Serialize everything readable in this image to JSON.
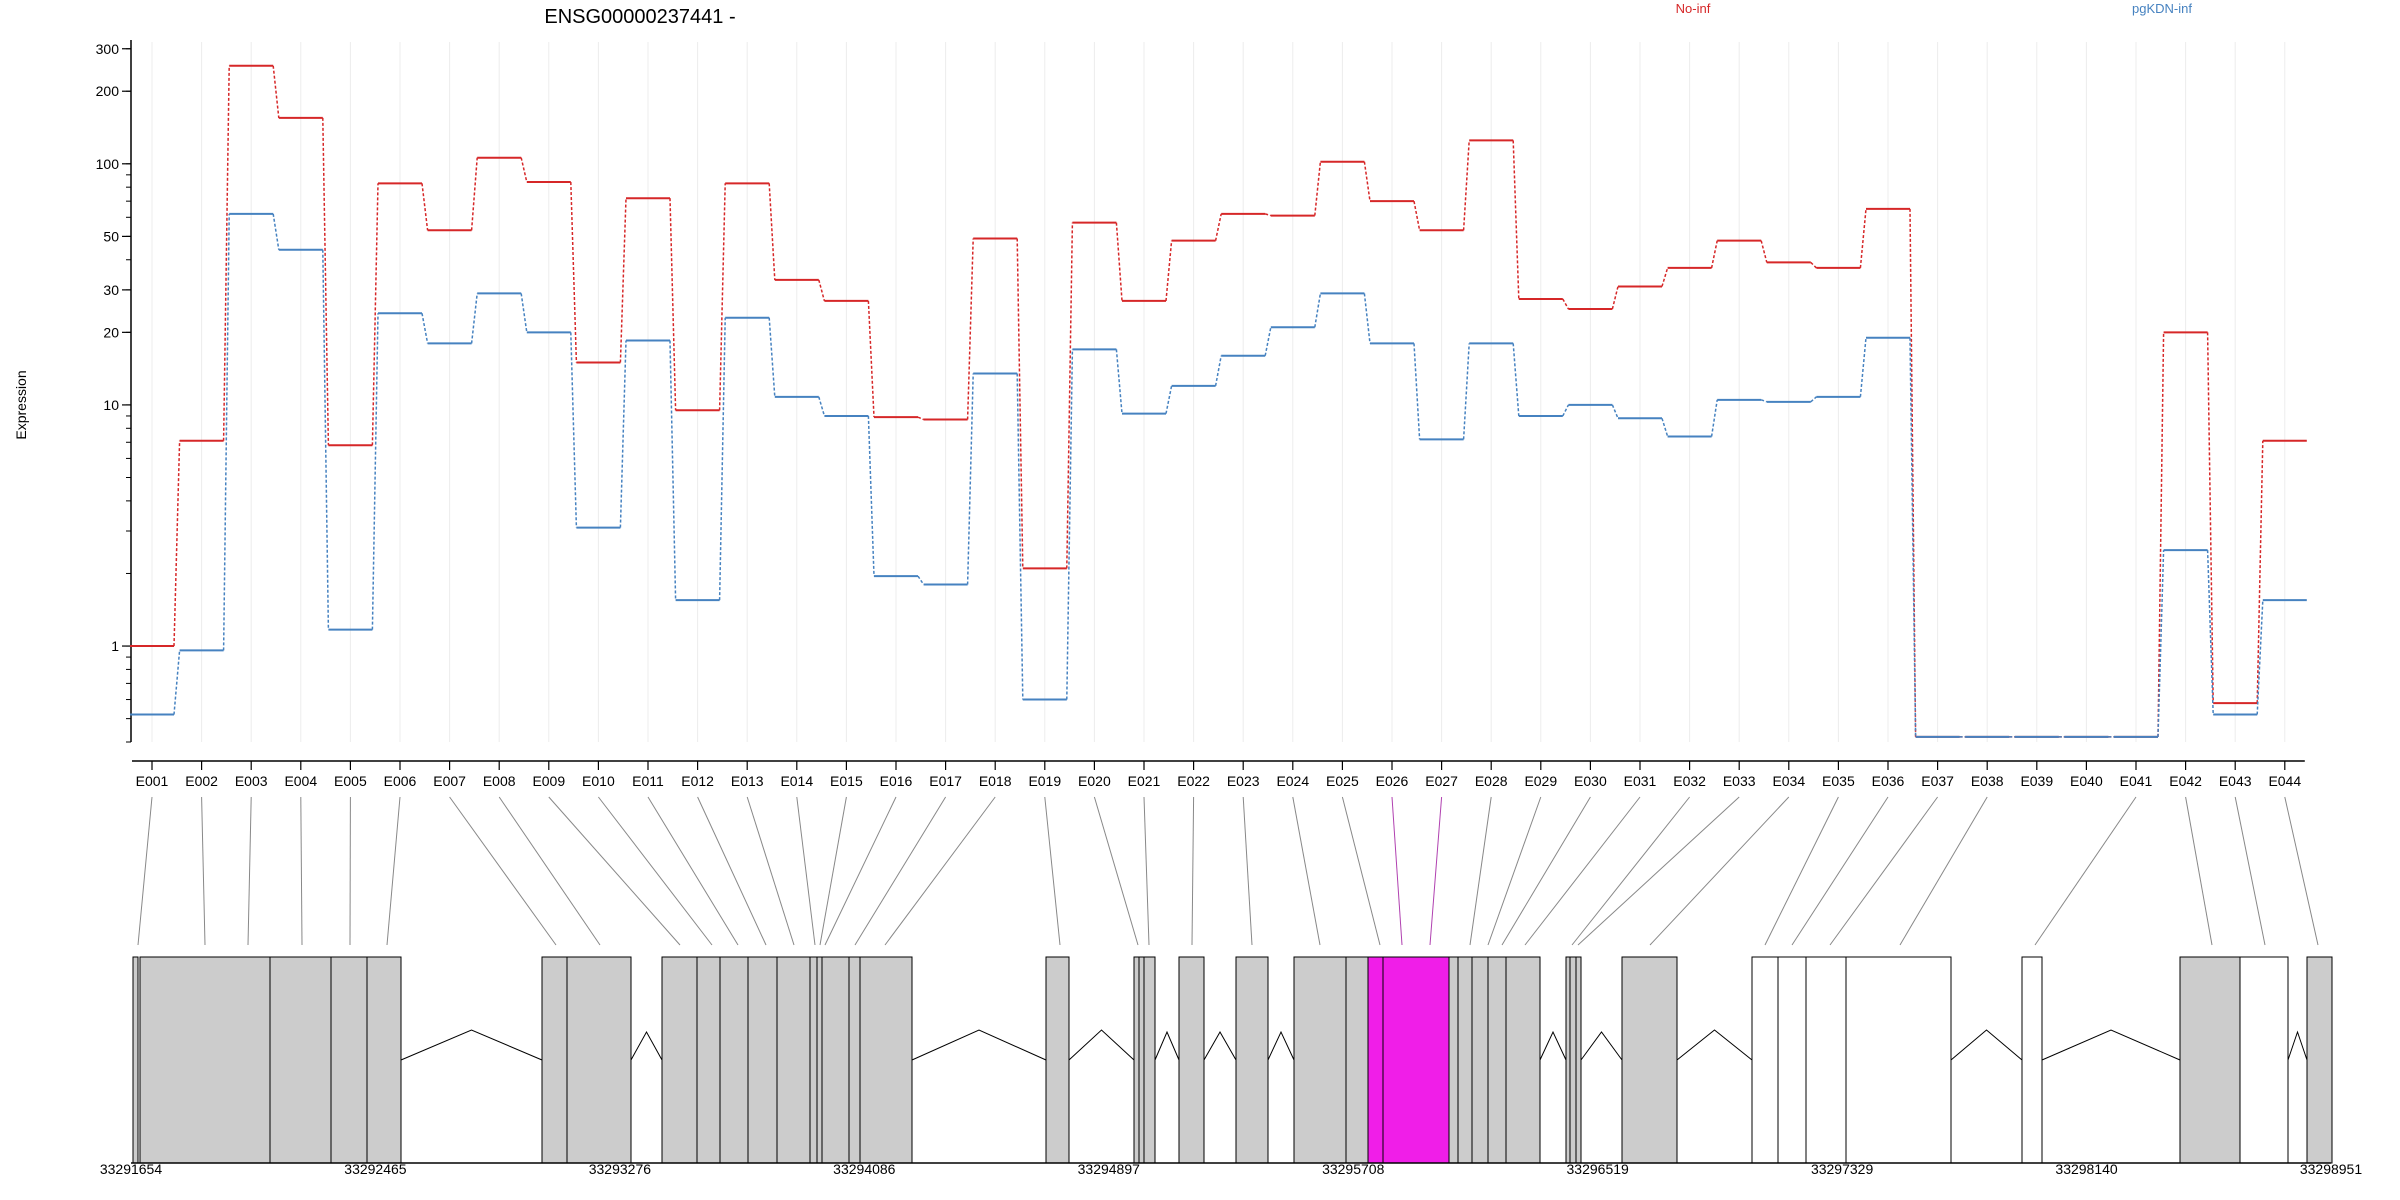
{
  "chart_data": {
    "type": "line",
    "title": "ENSG00000237441 -",
    "ylabel": "Expression",
    "xlabel": "",
    "yscale": "log",
    "ylim": [
      0.4,
      320
    ],
    "yticks": [
      1,
      10,
      20,
      30,
      50,
      100,
      200,
      300
    ],
    "grid": true,
    "legend_position": "top",
    "categories": [
      "E001",
      "E002",
      "E003",
      "E004",
      "E005",
      "E006",
      "E007",
      "E008",
      "E009",
      "E010",
      "E011",
      "E012",
      "E013",
      "E014",
      "E015",
      "E016",
      "E017",
      "E018",
      "E019",
      "E020",
      "E021",
      "E022",
      "E023",
      "E024",
      "E025",
      "E026",
      "E027",
      "E028",
      "E029",
      "E030",
      "E031",
      "E032",
      "E033",
      "E034",
      "E035",
      "E036",
      "E037",
      "E038",
      "E039",
      "E040",
      "E041",
      "E042",
      "E043",
      "E044"
    ],
    "series": [
      {
        "name": "No-inf",
        "color": "#d62728",
        "values": [
          1.0,
          7.1,
          255,
          155,
          6.8,
          83,
          53,
          106,
          84,
          15,
          72,
          9.5,
          83,
          33,
          27,
          8.9,
          8.7,
          49,
          2.1,
          57,
          27,
          48,
          62,
          61,
          102,
          70,
          53,
          125,
          27.5,
          25,
          31,
          37,
          48,
          39,
          37,
          65,
          0.42,
          0.42,
          0.42,
          0.42,
          0.42,
          20,
          0.58,
          7.1
        ]
      },
      {
        "name": "pgKDN-inf",
        "color": "#4682c0",
        "values": [
          0.52,
          0.96,
          62,
          44,
          1.17,
          24,
          18,
          29,
          20,
          3.1,
          18.5,
          1.55,
          23,
          10.8,
          9.0,
          1.95,
          1.8,
          13.5,
          0.6,
          17,
          9.2,
          12,
          16,
          21,
          29,
          18,
          7.2,
          18,
          9,
          10,
          8.8,
          7.4,
          10.5,
          10.3,
          10.8,
          19,
          0.42,
          0.42,
          0.42,
          0.42,
          0.42,
          2.5,
          0.52,
          1.55
        ]
      }
    ]
  },
  "gene_model": {
    "coordinates": [
      "33291654",
      "33292465",
      "33293276",
      "33294086",
      "33294897",
      "33295708",
      "33296519",
      "33297329",
      "33298140",
      "33298951"
    ],
    "highlight_color": "#f01ee8",
    "exon_fill": "#cccccc"
  }
}
